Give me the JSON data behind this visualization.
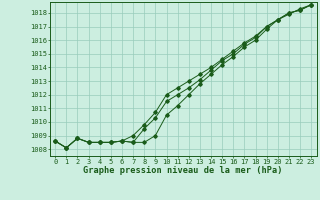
{
  "x": [
    0,
    1,
    2,
    3,
    4,
    5,
    6,
    7,
    8,
    9,
    10,
    11,
    12,
    13,
    14,
    15,
    16,
    17,
    18,
    19,
    20,
    21,
    22,
    23
  ],
  "series1": [
    1008.6,
    1008.1,
    1008.8,
    1008.5,
    1008.5,
    1008.5,
    1008.6,
    1008.5,
    1008.5,
    1009.0,
    1010.5,
    1011.2,
    1012.0,
    1012.8,
    1013.5,
    1014.2,
    1014.8,
    1015.5,
    1016.0,
    1016.8,
    1017.5,
    1018.0,
    1018.2,
    1018.6
  ],
  "series2": [
    1008.6,
    1008.1,
    1008.8,
    1008.5,
    1008.5,
    1008.5,
    1008.6,
    1008.5,
    1009.5,
    1010.3,
    1011.5,
    1012.0,
    1012.5,
    1013.1,
    1013.8,
    1014.5,
    1015.0,
    1015.7,
    1016.2,
    1017.0,
    1017.5,
    1017.9,
    1018.3,
    1018.6
  ],
  "series3": [
    1008.6,
    1008.1,
    1008.8,
    1008.5,
    1008.5,
    1008.5,
    1008.6,
    1009.0,
    1009.8,
    1010.7,
    1012.0,
    1012.5,
    1013.0,
    1013.5,
    1014.0,
    1014.6,
    1015.2,
    1015.8,
    1016.3,
    1017.0,
    1017.5,
    1018.0,
    1018.2,
    1018.6
  ],
  "ylim": [
    1007.5,
    1018.8
  ],
  "xlim": [
    -0.5,
    23.5
  ],
  "yticks": [
    1008,
    1009,
    1010,
    1011,
    1012,
    1013,
    1014,
    1015,
    1016,
    1017,
    1018
  ],
  "xticks": [
    0,
    1,
    2,
    3,
    4,
    5,
    6,
    7,
    8,
    9,
    10,
    11,
    12,
    13,
    14,
    15,
    16,
    17,
    18,
    19,
    20,
    21,
    22,
    23
  ],
  "xlabel": "Graphe pression niveau de la mer (hPa)",
  "line_color": "#1a5c1a",
  "bg_color": "#cceee0",
  "grid_color": "#99ccbb",
  "tick_label_fontsize": 5.0,
  "xlabel_fontsize": 6.2
}
